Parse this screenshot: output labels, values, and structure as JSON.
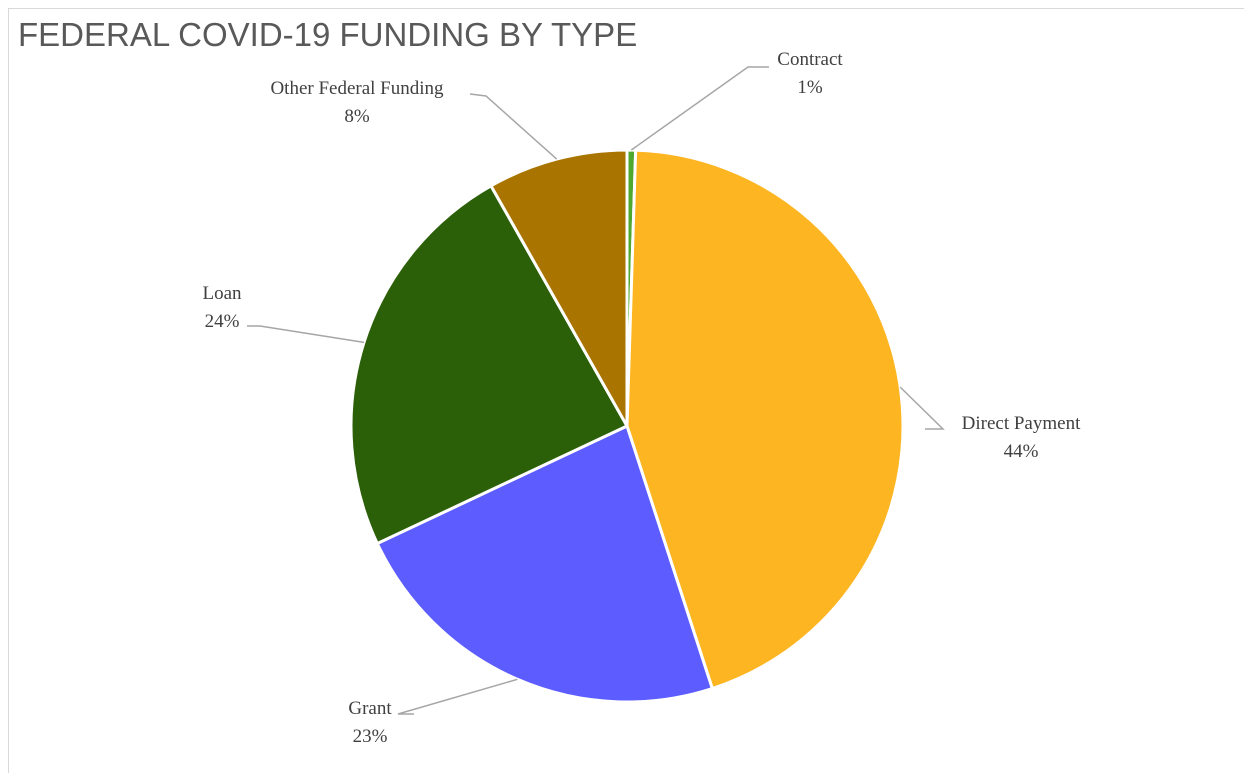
{
  "chart_data": {
    "type": "pie",
    "title": "FEDERAL COVID-19 FUNDING BY TYPE",
    "slices": [
      {
        "label": "Contract",
        "pct_label": "1%",
        "value": 0.5,
        "color": "#4ea72e"
      },
      {
        "label": "Direct Payment",
        "pct_label": "44%",
        "value": 44.5,
        "color": "#fdb521"
      },
      {
        "label": "Grant",
        "pct_label": "23%",
        "value": 23.0,
        "color": "#5c5cff"
      },
      {
        "label": "Loan",
        "pct_label": "24%",
        "value": 23.8,
        "color": "#2b5f08"
      },
      {
        "label": "Other Federal Funding",
        "pct_label": "8%",
        "value": 8.2,
        "color": "#a97400"
      }
    ],
    "legend": "none",
    "data_labels": "outside with leader lines"
  }
}
